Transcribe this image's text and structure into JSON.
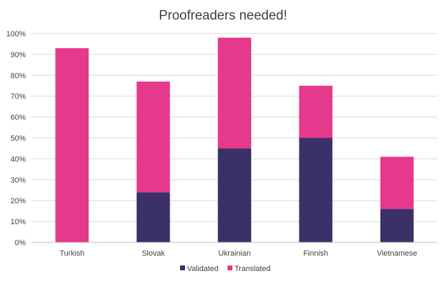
{
  "chart_data": {
    "type": "bar",
    "stacked": true,
    "title": "Proofreaders needed!",
    "xlabel": "",
    "ylabel": "",
    "categories": [
      "Turkish",
      "Slovak",
      "Ukrainian",
      "Finnish",
      "Vietnamese"
    ],
    "series": [
      {
        "name": "Validated",
        "values": [
          0,
          24,
          45,
          50,
          16
        ],
        "color": "#3b3068"
      },
      {
        "name": "Translated",
        "values": [
          93,
          53,
          53,
          25,
          25
        ],
        "color": "#e5398b"
      }
    ],
    "ylim": [
      0,
      100
    ],
    "yticks": [
      "0%",
      "10%",
      "20%",
      "30%",
      "40%",
      "50%",
      "60%",
      "70%",
      "80%",
      "90%",
      "100%"
    ],
    "grid": true,
    "legend_position": "bottom"
  }
}
